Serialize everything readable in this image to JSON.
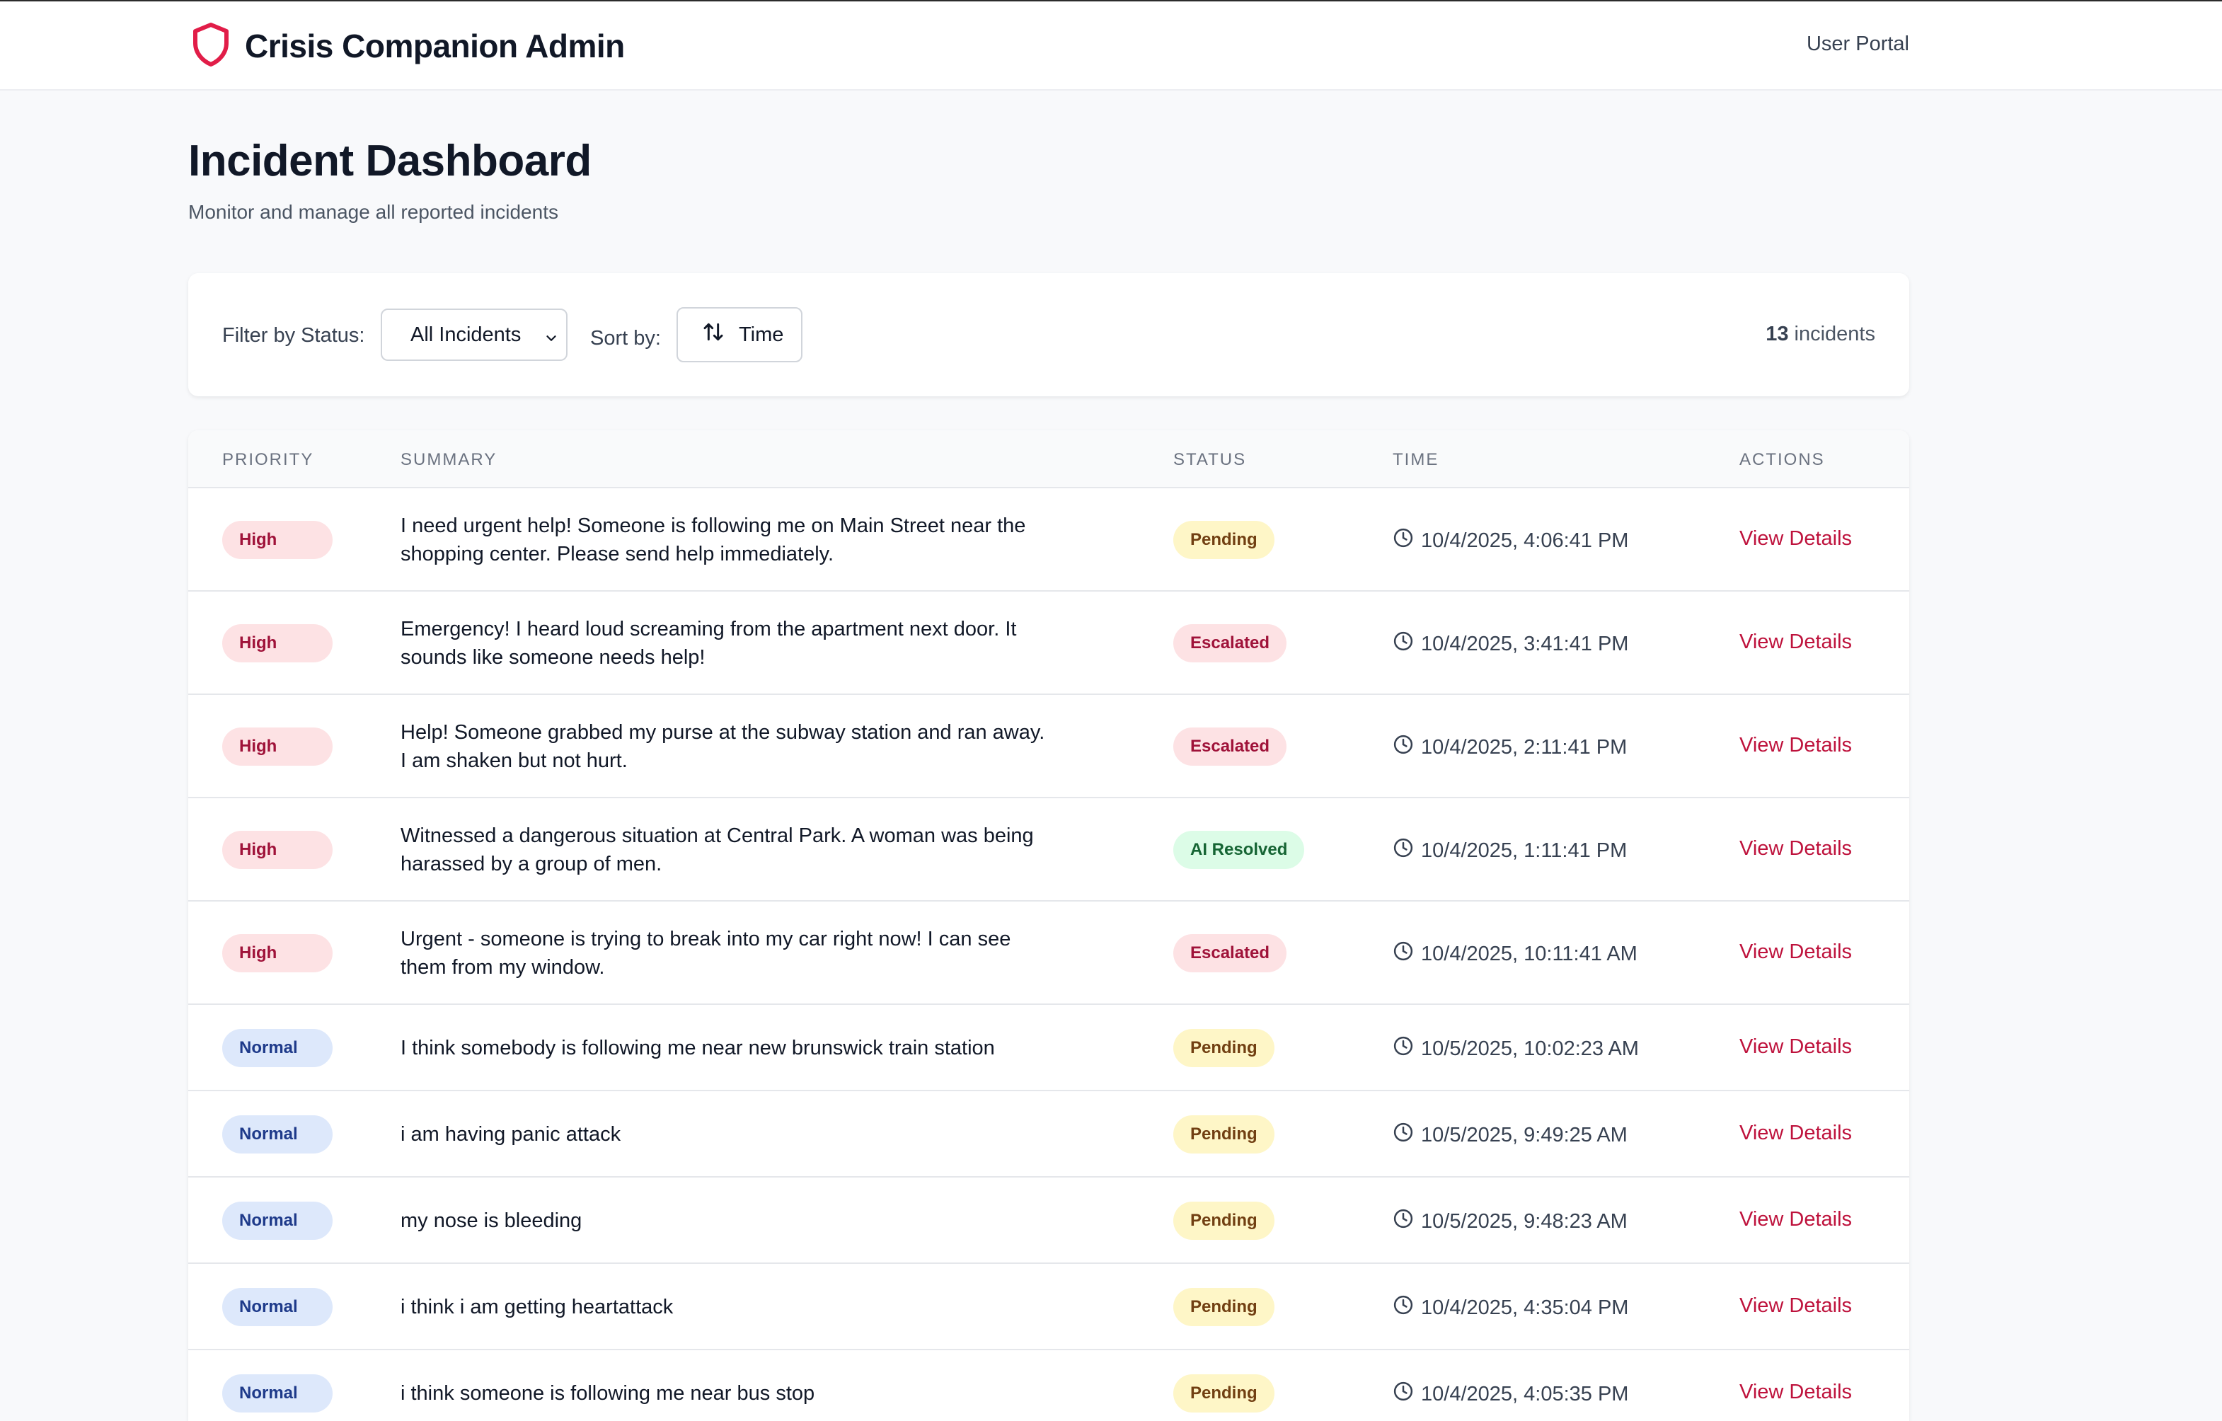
{
  "header": {
    "app_title": "Crisis Companion Admin",
    "nav_link": "User Portal",
    "accent_color": "#e11d48"
  },
  "page": {
    "title": "Incident Dashboard",
    "subtitle": "Monitor and manage all reported incidents"
  },
  "filters": {
    "status_label": "Filter by Status:",
    "status_value": "All Incidents",
    "sort_label": "Sort by:",
    "sort_value": "Time",
    "count_number": "13",
    "count_suffix": "incidents"
  },
  "table": {
    "columns": [
      "Priority",
      "Summary",
      "Status",
      "Time",
      "Actions"
    ],
    "action_label": "View Details",
    "rows": [
      {
        "priority": "High",
        "summary": "I need urgent help! Someone is following me on Main Street near the shopping center. Please send help immediately.",
        "status": "Pending",
        "time": "10/4/2025, 4:06:41 PM"
      },
      {
        "priority": "High",
        "summary": "Emergency! I heard loud screaming from the apartment next door. It sounds like someone needs help!",
        "status": "Escalated",
        "time": "10/4/2025, 3:41:41 PM"
      },
      {
        "priority": "High",
        "summary": "Help! Someone grabbed my purse at the subway station and ran away. I am shaken but not hurt.",
        "status": "Escalated",
        "time": "10/4/2025, 2:11:41 PM"
      },
      {
        "priority": "High",
        "summary": "Witnessed a dangerous situation at Central Park. A woman was being harassed by a group of men.",
        "status": "AI Resolved",
        "time": "10/4/2025, 1:11:41 PM"
      },
      {
        "priority": "High",
        "summary": "Urgent - someone is trying to break into my car right now! I can see them from my window.",
        "status": "Escalated",
        "time": "10/4/2025, 10:11:41 AM"
      },
      {
        "priority": "Normal",
        "summary": "I think somebody is following me near new brunswick train station",
        "status": "Pending",
        "time": "10/5/2025, 10:02:23 AM"
      },
      {
        "priority": "Normal",
        "summary": "i am having panic attack",
        "status": "Pending",
        "time": "10/5/2025, 9:49:25 AM"
      },
      {
        "priority": "Normal",
        "summary": "my nose is bleeding",
        "status": "Pending",
        "time": "10/5/2025, 9:48:23 AM"
      },
      {
        "priority": "Normal",
        "summary": "i think i am getting heartattack",
        "status": "Pending",
        "time": "10/4/2025, 4:35:04 PM"
      },
      {
        "priority": "Normal",
        "summary": "i think someone is following me near bus stop",
        "status": "Pending",
        "time": "10/4/2025, 4:05:35 PM"
      }
    ]
  }
}
